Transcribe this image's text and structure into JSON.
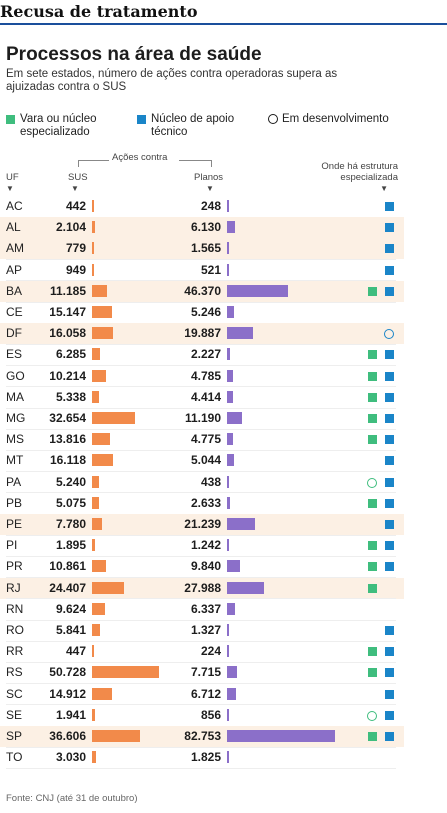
{
  "page_header": "Recusa de tratamento",
  "chart_data": {
    "type": "bar",
    "title": "Processos na área de saúde",
    "subtitle": "Em sete estados, número de ações contra operadoras supera as ajuizadas contra o SUS",
    "group_label": "Ações contra",
    "uf_header": "UF",
    "structure_header": "Onde há estrutura especializada",
    "legend": [
      {
        "key": "vara",
        "label": "Vara ou núcleo especializado",
        "color": "#3fbd7e",
        "shape": "square"
      },
      {
        "key": "nucleo",
        "label": "Núcleo de apoio técnico",
        "color": "#1a85c8",
        "shape": "square"
      },
      {
        "key": "dev",
        "label": "Em desenvolvimento",
        "color": "#1a1a1a",
        "shape": "circle-outline"
      }
    ],
    "series": [
      {
        "name": "SUS",
        "color": "#f28a4a"
      },
      {
        "name": "Planos",
        "color": "#8b6fc9"
      }
    ],
    "rows": [
      {
        "uf": "AC",
        "sus": 442,
        "sus_label": "442",
        "planos": 248,
        "planos_label": "248",
        "vara": "",
        "nucleo": "square",
        "highlight": false
      },
      {
        "uf": "AL",
        "sus": 2104,
        "sus_label": "2.104",
        "planos": 6130,
        "planos_label": "6.130",
        "vara": "",
        "nucleo": "square",
        "highlight": true
      },
      {
        "uf": "AM",
        "sus": 779,
        "sus_label": "779",
        "planos": 1565,
        "planos_label": "1.565",
        "vara": "",
        "nucleo": "square",
        "highlight": true
      },
      {
        "uf": "AP",
        "sus": 949,
        "sus_label": "949",
        "planos": 521,
        "planos_label": "521",
        "vara": "",
        "nucleo": "square",
        "highlight": false
      },
      {
        "uf": "BA",
        "sus": 11185,
        "sus_label": "11.185",
        "planos": 46370,
        "planos_label": "46.370",
        "vara": "square",
        "nucleo": "square",
        "highlight": true
      },
      {
        "uf": "CE",
        "sus": 15147,
        "sus_label": "15.147",
        "planos": 5246,
        "planos_label": "5.246",
        "vara": "",
        "nucleo": "",
        "highlight": false
      },
      {
        "uf": "DF",
        "sus": 16058,
        "sus_label": "16.058",
        "planos": 19887,
        "planos_label": "19.887",
        "vara": "",
        "nucleo": "circle",
        "highlight": true
      },
      {
        "uf": "ES",
        "sus": 6285,
        "sus_label": "6.285",
        "planos": 2227,
        "planos_label": "2.227",
        "vara": "square",
        "nucleo": "square",
        "highlight": false
      },
      {
        "uf": "GO",
        "sus": 10214,
        "sus_label": "10.214",
        "planos": 4785,
        "planos_label": "4.785",
        "vara": "square",
        "nucleo": "square",
        "highlight": false
      },
      {
        "uf": "MA",
        "sus": 5338,
        "sus_label": "5.338",
        "planos": 4414,
        "planos_label": "4.414",
        "vara": "square",
        "nucleo": "square",
        "highlight": false
      },
      {
        "uf": "MG",
        "sus": 32654,
        "sus_label": "32.654",
        "planos": 11190,
        "planos_label": "11.190",
        "vara": "square",
        "nucleo": "square",
        "highlight": false
      },
      {
        "uf": "MS",
        "sus": 13816,
        "sus_label": "13.816",
        "planos": 4775,
        "planos_label": "4.775",
        "vara": "square",
        "nucleo": "square",
        "highlight": false
      },
      {
        "uf": "MT",
        "sus": 16118,
        "sus_label": "16.118",
        "planos": 5044,
        "planos_label": "5.044",
        "vara": "",
        "nucleo": "square",
        "highlight": false
      },
      {
        "uf": "PA",
        "sus": 5240,
        "sus_label": "5.240",
        "planos": 438,
        "planos_label": "438",
        "vara": "circle",
        "nucleo": "square",
        "highlight": false
      },
      {
        "uf": "PB",
        "sus": 5075,
        "sus_label": "5.075",
        "planos": 2633,
        "planos_label": "2.633",
        "vara": "square",
        "nucleo": "square",
        "highlight": false
      },
      {
        "uf": "PE",
        "sus": 7780,
        "sus_label": "7.780",
        "planos": 21239,
        "planos_label": "21.239",
        "vara": "",
        "nucleo": "square",
        "highlight": true
      },
      {
        "uf": "PI",
        "sus": 1895,
        "sus_label": "1.895",
        "planos": 1242,
        "planos_label": "1.242",
        "vara": "square",
        "nucleo": "square",
        "highlight": false
      },
      {
        "uf": "PR",
        "sus": 10861,
        "sus_label": "10.861",
        "planos": 9840,
        "planos_label": "9.840",
        "vara": "square",
        "nucleo": "square",
        "highlight": false
      },
      {
        "uf": "RJ",
        "sus": 24407,
        "sus_label": "24.407",
        "planos": 27988,
        "planos_label": "27.988",
        "vara": "square",
        "nucleo": "",
        "highlight": true
      },
      {
        "uf": "RN",
        "sus": 9624,
        "sus_label": "9.624",
        "planos": 6337,
        "planos_label": "6.337",
        "vara": "",
        "nucleo": "",
        "highlight": false
      },
      {
        "uf": "RO",
        "sus": 5841,
        "sus_label": "5.841",
        "planos": 1327,
        "planos_label": "1.327",
        "vara": "",
        "nucleo": "square",
        "highlight": false
      },
      {
        "uf": "RR",
        "sus": 447,
        "sus_label": "447",
        "planos": 224,
        "planos_label": "224",
        "vara": "square",
        "nucleo": "square",
        "highlight": false
      },
      {
        "uf": "RS",
        "sus": 50728,
        "sus_label": "50.728",
        "planos": 7715,
        "planos_label": "7.715",
        "vara": "square",
        "nucleo": "square",
        "highlight": false
      },
      {
        "uf": "SC",
        "sus": 14912,
        "sus_label": "14.912",
        "planos": 6712,
        "planos_label": "6.712",
        "vara": "",
        "nucleo": "square",
        "highlight": false
      },
      {
        "uf": "SE",
        "sus": 1941,
        "sus_label": "1.941",
        "planos": 856,
        "planos_label": "856",
        "vara": "circle",
        "nucleo": "square",
        "highlight": false
      },
      {
        "uf": "SP",
        "sus": 36606,
        "sus_label": "36.606",
        "planos": 82753,
        "planos_label": "82.753",
        "vara": "square",
        "nucleo": "square",
        "highlight": true
      },
      {
        "uf": "TO",
        "sus": 3030,
        "sus_label": "3.030",
        "planos": 1825,
        "planos_label": "1.825",
        "vara": "",
        "nucleo": "",
        "highlight": false
      }
    ],
    "source": "Fonte: CNJ (até 31 de outubro)"
  }
}
